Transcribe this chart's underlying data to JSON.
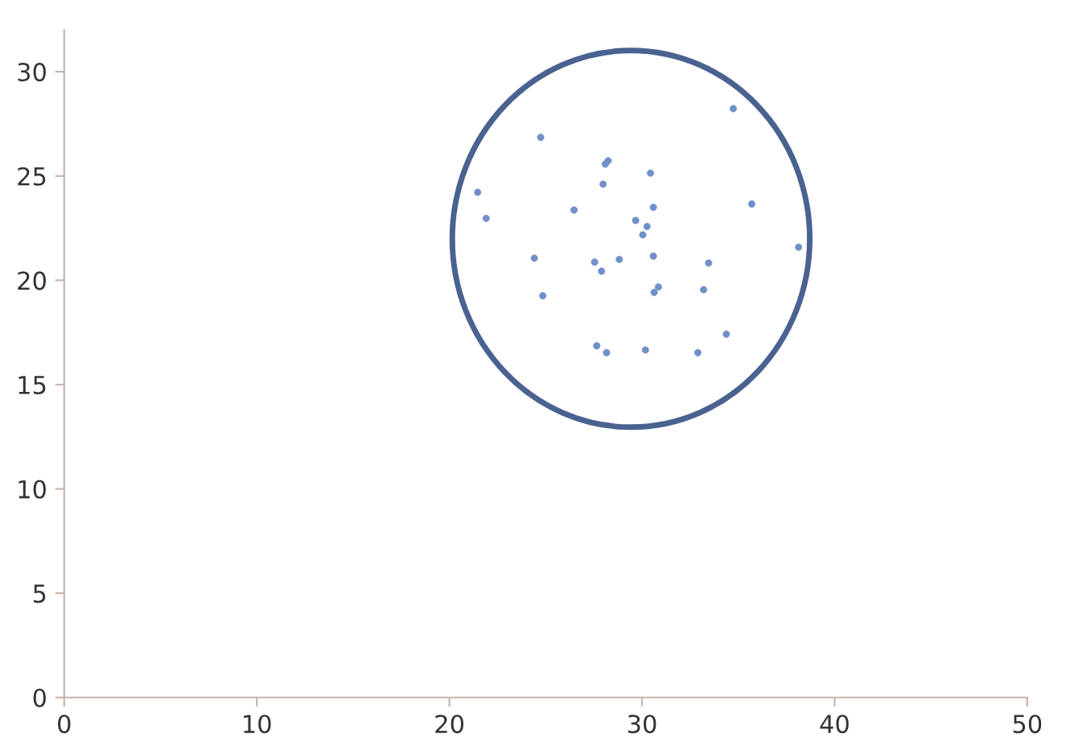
{
  "chart_data": {
    "type": "scatter",
    "xlim": [
      0,
      50
    ],
    "ylim": [
      0,
      32
    ],
    "xticks": [
      0,
      10,
      20,
      30,
      40,
      50
    ],
    "yticks": [
      0,
      5,
      10,
      15,
      20,
      25,
      30
    ],
    "grid": false,
    "legend": false,
    "marker": "circle",
    "series": [
      {
        "type": "scatter",
        "color": "#7090c8",
        "x": [
          34.74,
          24.74,
          28.24,
          28.09,
          27.98,
          30.44,
          21.47,
          21.91,
          26.47,
          30.59,
          35.7,
          29.67,
          30.26,
          30.04,
          38.13,
          24.41,
          27.54,
          27.9,
          28.82,
          30.59,
          33.46,
          24.85,
          30.85,
          30.63,
          33.2,
          34.38,
          27.65,
          28.16,
          30.18,
          32.9
        ],
        "values": [
          28.23,
          26.85,
          25.73,
          25.57,
          24.61,
          25.14,
          24.22,
          22.97,
          23.37,
          23.5,
          23.66,
          22.87,
          22.58,
          22.18,
          21.59,
          21.06,
          20.87,
          20.44,
          21.0,
          21.16,
          20.83,
          19.26,
          19.68,
          19.42,
          19.55,
          17.42,
          16.86,
          16.53,
          16.66,
          16.53
        ]
      }
    ]
  }
}
